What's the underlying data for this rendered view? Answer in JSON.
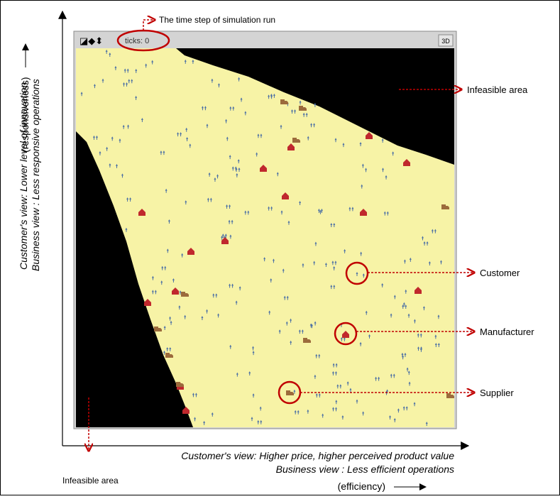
{
  "window": {
    "ticks": "ticks: 0",
    "button_3d": "3D"
  },
  "annotations": {
    "time_step": "The time step of simulation run",
    "infeasible_top": "Infeasible area",
    "infeasible_bottom": "Infeasible area",
    "customer": "Customer",
    "manufacturer": "Manufacturer",
    "supplier": "Supplier"
  },
  "y_axis": {
    "responsiveness": "(responsiveness)",
    "customer_view": "Customer's view: Lower level of innovation",
    "business_view": "Business view : Less responsive operations"
  },
  "x_axis": {
    "customer_view": "Customer's view: Higher price, higher perceived product value",
    "business_view": "Business view : Less efficient operations",
    "efficiency": "(efficiency)"
  }
}
